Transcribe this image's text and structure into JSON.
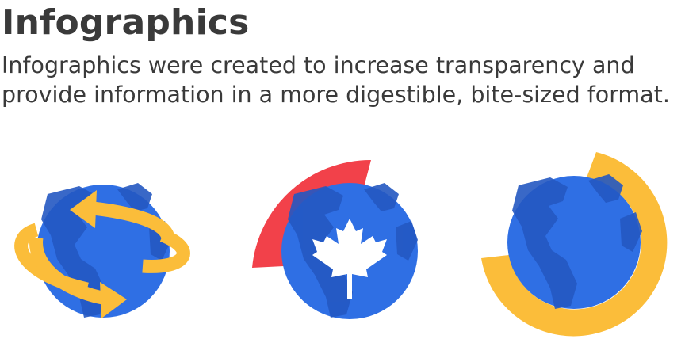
{
  "header": {
    "title": "Infographics",
    "description": "Infographics were created to increase transparency and provide information in a more digestible, bite-sized format."
  },
  "colors": {
    "text": "#3a3a3a",
    "globe_blue": "#2f6fe4",
    "land_blue": "#2458c2",
    "arrow_yellow": "#fbbd3a",
    "arc_red": "#f2414a",
    "leaf_white": "#ffffff"
  },
  "icons": [
    "globe-with-arrows-icon",
    "globe-with-maple-leaf-icon",
    "globe-with-ring-icon"
  ]
}
